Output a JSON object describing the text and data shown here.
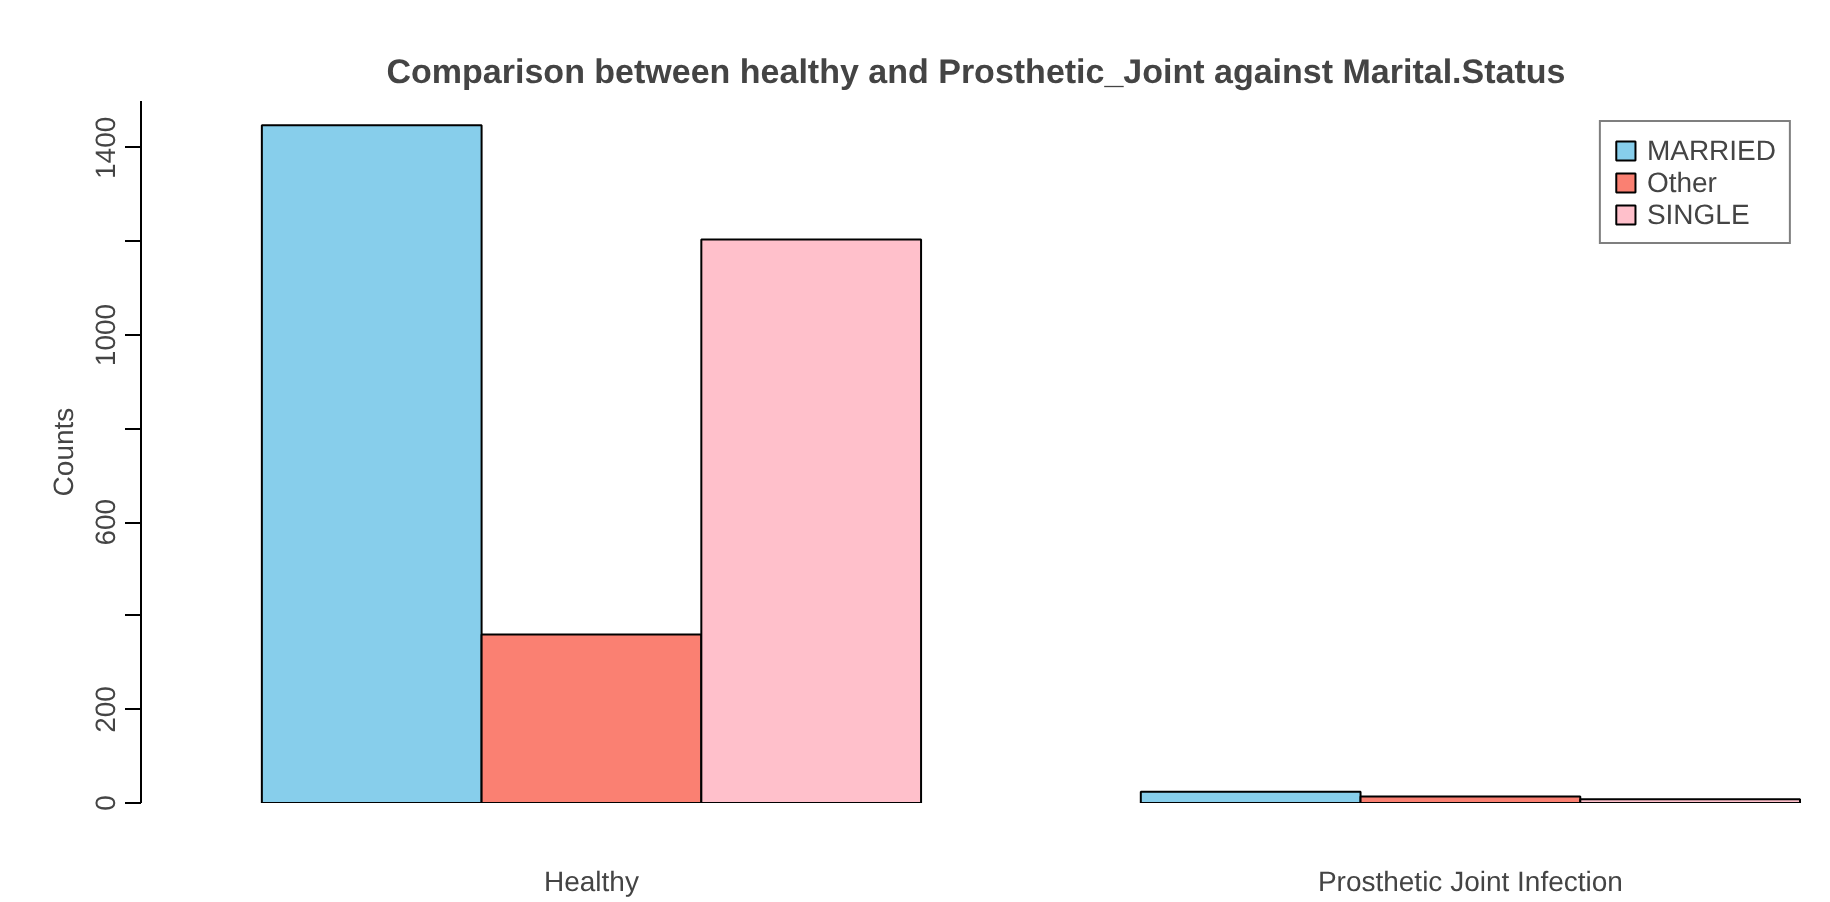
{
  "chart_data": {
    "type": "bar",
    "title": "Comparison between healthy and Prosthetic_Joint against Marital.Status",
    "ylabel": "Counts",
    "categories": [
      "Healthy",
      "Prosthetic Joint Infection"
    ],
    "series": [
      {
        "name": "MARRIED",
        "color": "#87ceeb",
        "values": [
          1448,
          24
        ]
      },
      {
        "name": "Other",
        "color": "#fa8072",
        "values": [
          360,
          14
        ]
      },
      {
        "name": "SINGLE",
        "color": "#ffc0cb",
        "values": [
          1204,
          8
        ]
      }
    ],
    "ylim": [
      0,
      1500
    ],
    "yticks": [
      0,
      200,
      {
        "value": 400,
        "label": null
      },
      600,
      {
        "value": 800,
        "label": null
      },
      1000,
      {
        "value": 1200,
        "label": null
      },
      1400
    ],
    "grid": false,
    "legend": "top right"
  }
}
